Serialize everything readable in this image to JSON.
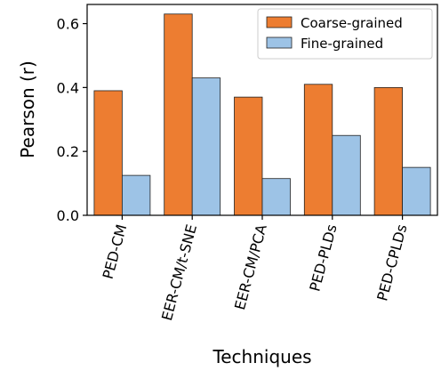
{
  "chart_data": {
    "type": "bar",
    "categories": [
      "PED-CM",
      "EER-CM/t-SNE",
      "EER-CM/PCA",
      "PED-PLDs",
      "PED-CPLDs"
    ],
    "series": [
      {
        "name": "Coarse-grained",
        "values": [
          0.39,
          0.63,
          0.37,
          0.41,
          0.4
        ],
        "color": "#ed7d31"
      },
      {
        "name": "Fine-grained",
        "values": [
          0.125,
          0.43,
          0.115,
          0.25,
          0.15
        ],
        "color": "#9dc3e6"
      }
    ],
    "xlabel": "Techniques",
    "ylabel": "Pearson (r)",
    "ylim": [
      0,
      0.66
    ],
    "yticks": [
      0.0,
      0.2,
      0.4,
      0.6
    ],
    "ytick_labels": [
      "0.0",
      "0.2",
      "0.4",
      "0.6"
    ],
    "legend_position": "top-right",
    "grid": false
  }
}
